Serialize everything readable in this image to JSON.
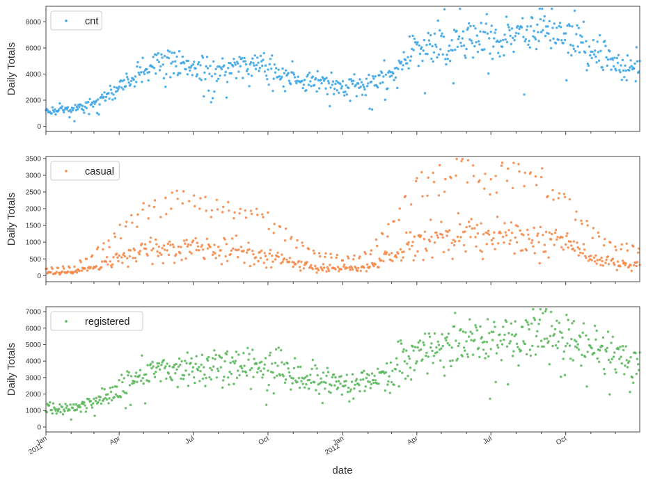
{
  "chart_data": {
    "type": "scatter",
    "xlabel": "date",
    "x_ticks": [
      {
        "date": "2011-01-01",
        "label": "Jan",
        "year": "2011"
      },
      {
        "date": "2011-04-01",
        "label": "Apr"
      },
      {
        "date": "2011-07-01",
        "label": "Jul"
      },
      {
        "date": "2011-10-01",
        "label": "Oct"
      },
      {
        "date": "2012-01-01",
        "label": "Jan",
        "year": "2012"
      },
      {
        "date": "2012-04-01",
        "label": "Apr"
      },
      {
        "date": "2012-07-01",
        "label": "Jul"
      },
      {
        "date": "2012-10-01",
        "label": "Oct"
      }
    ],
    "xlim": [
      "2011-01-01",
      "2012-12-31"
    ],
    "panels": [
      {
        "ylabel": "Daily Totals",
        "ylim": [
          -400,
          9200
        ],
        "yticks": [
          0,
          2000,
          4000,
          6000,
          8000
        ],
        "series": {
          "name": "cnt",
          "color": "#3ea6e6",
          "trend": [
            {
              "date": "2011-01-01",
              "value": 1200
            },
            {
              "date": "2011-02-01",
              "value": 1300
            },
            {
              "date": "2011-03-01",
              "value": 1800
            },
            {
              "date": "2011-04-01",
              "value": 2900
            },
            {
              "date": "2011-05-01",
              "value": 4300
            },
            {
              "date": "2011-06-01",
              "value": 4800
            },
            {
              "date": "2011-07-01",
              "value": 4600
            },
            {
              "date": "2011-08-01",
              "value": 4450
            },
            {
              "date": "2011-09-01",
              "value": 4600
            },
            {
              "date": "2011-10-01",
              "value": 4500
            },
            {
              "date": "2011-11-01",
              "value": 3800
            },
            {
              "date": "2011-12-01",
              "value": 3200
            },
            {
              "date": "2012-01-01",
              "value": 3000
            },
            {
              "date": "2012-02-01",
              "value": 3300
            },
            {
              "date": "2012-03-01",
              "value": 4000
            },
            {
              "date": "2012-04-01",
              "value": 5800
            },
            {
              "date": "2012-05-01",
              "value": 6300
            },
            {
              "date": "2012-06-01",
              "value": 6700
            },
            {
              "date": "2012-07-01",
              "value": 6600
            },
            {
              "date": "2012-08-01",
              "value": 6900
            },
            {
              "date": "2012-09-01",
              "value": 7400
            },
            {
              "date": "2012-10-01",
              "value": 7100
            },
            {
              "date": "2012-11-01",
              "value": 5700
            },
            {
              "date": "2012-12-01",
              "value": 4800
            },
            {
              "date": "2012-12-31",
              "value": 4500
            }
          ]
        }
      },
      {
        "ylabel": "Daily Totals",
        "ylim": [
          -180,
          3560
        ],
        "yticks": [
          0,
          500,
          1000,
          1500,
          2000,
          2500,
          3000,
          3500
        ],
        "series": {
          "name": "casual",
          "color": "#f58a4a",
          "trend": [
            {
              "date": "2011-01-01",
              "value": 80
            },
            {
              "date": "2011-02-01",
              "value": 100
            },
            {
              "date": "2011-03-01",
              "value": 250
            },
            {
              "date": "2011-04-01",
              "value": 500
            },
            {
              "date": "2011-05-01",
              "value": 750
            },
            {
              "date": "2011-06-01",
              "value": 850
            },
            {
              "date": "2011-07-01",
              "value": 900
            },
            {
              "date": "2011-08-01",
              "value": 800
            },
            {
              "date": "2011-09-01",
              "value": 750
            },
            {
              "date": "2011-10-01",
              "value": 650
            },
            {
              "date": "2011-11-01",
              "value": 400
            },
            {
              "date": "2011-12-01",
              "value": 250
            },
            {
              "date": "2012-01-01",
              "value": 200
            },
            {
              "date": "2012-02-01",
              "value": 250
            },
            {
              "date": "2012-03-01",
              "value": 600
            },
            {
              "date": "2012-04-01",
              "value": 1000
            },
            {
              "date": "2012-05-01",
              "value": 1150
            },
            {
              "date": "2012-06-01",
              "value": 1250
            },
            {
              "date": "2012-07-01",
              "value": 1150
            },
            {
              "date": "2012-08-01",
              "value": 1150
            },
            {
              "date": "2012-09-01",
              "value": 1150
            },
            {
              "date": "2012-10-01",
              "value": 950
            },
            {
              "date": "2012-11-01",
              "value": 500
            },
            {
              "date": "2012-12-01",
              "value": 350
            },
            {
              "date": "2012-12-31",
              "value": 300
            }
          ]
        }
      },
      {
        "ylabel": "Daily Totals",
        "ylim": [
          -300,
          7300
        ],
        "yticks": [
          0,
          1000,
          2000,
          3000,
          4000,
          5000,
          6000,
          7000
        ],
        "series": {
          "name": "registered",
          "color": "#5cb85c",
          "trend": [
            {
              "date": "2011-01-01",
              "value": 1100
            },
            {
              "date": "2011-02-01",
              "value": 1200
            },
            {
              "date": "2011-03-01",
              "value": 1600
            },
            {
              "date": "2011-04-01",
              "value": 2400
            },
            {
              "date": "2011-05-01",
              "value": 3500
            },
            {
              "date": "2011-06-01",
              "value": 3800
            },
            {
              "date": "2011-07-01",
              "value": 3700
            },
            {
              "date": "2011-08-01",
              "value": 3650
            },
            {
              "date": "2011-09-01",
              "value": 3800
            },
            {
              "date": "2011-10-01",
              "value": 3800
            },
            {
              "date": "2011-11-01",
              "value": 3400
            },
            {
              "date": "2011-12-01",
              "value": 3000
            },
            {
              "date": "2012-01-01",
              "value": 2700
            },
            {
              "date": "2012-02-01",
              "value": 3000
            },
            {
              "date": "2012-03-01",
              "value": 3600
            },
            {
              "date": "2012-04-01",
              "value": 4700
            },
            {
              "date": "2012-05-01",
              "value": 5000
            },
            {
              "date": "2012-06-01",
              "value": 5400
            },
            {
              "date": "2012-07-01",
              "value": 5400
            },
            {
              "date": "2012-08-01",
              "value": 5700
            },
            {
              "date": "2012-09-01",
              "value": 6100
            },
            {
              "date": "2012-10-01",
              "value": 5900
            },
            {
              "date": "2012-11-01",
              "value": 5000
            },
            {
              "date": "2012-12-01",
              "value": 4400
            },
            {
              "date": "2012-12-31",
              "value": 4200
            }
          ]
        }
      }
    ],
    "grid": false,
    "legend_position": "top-left"
  },
  "style": {
    "text_color": "#333333",
    "spine_color": "#444444",
    "background": "#ffffff"
  }
}
